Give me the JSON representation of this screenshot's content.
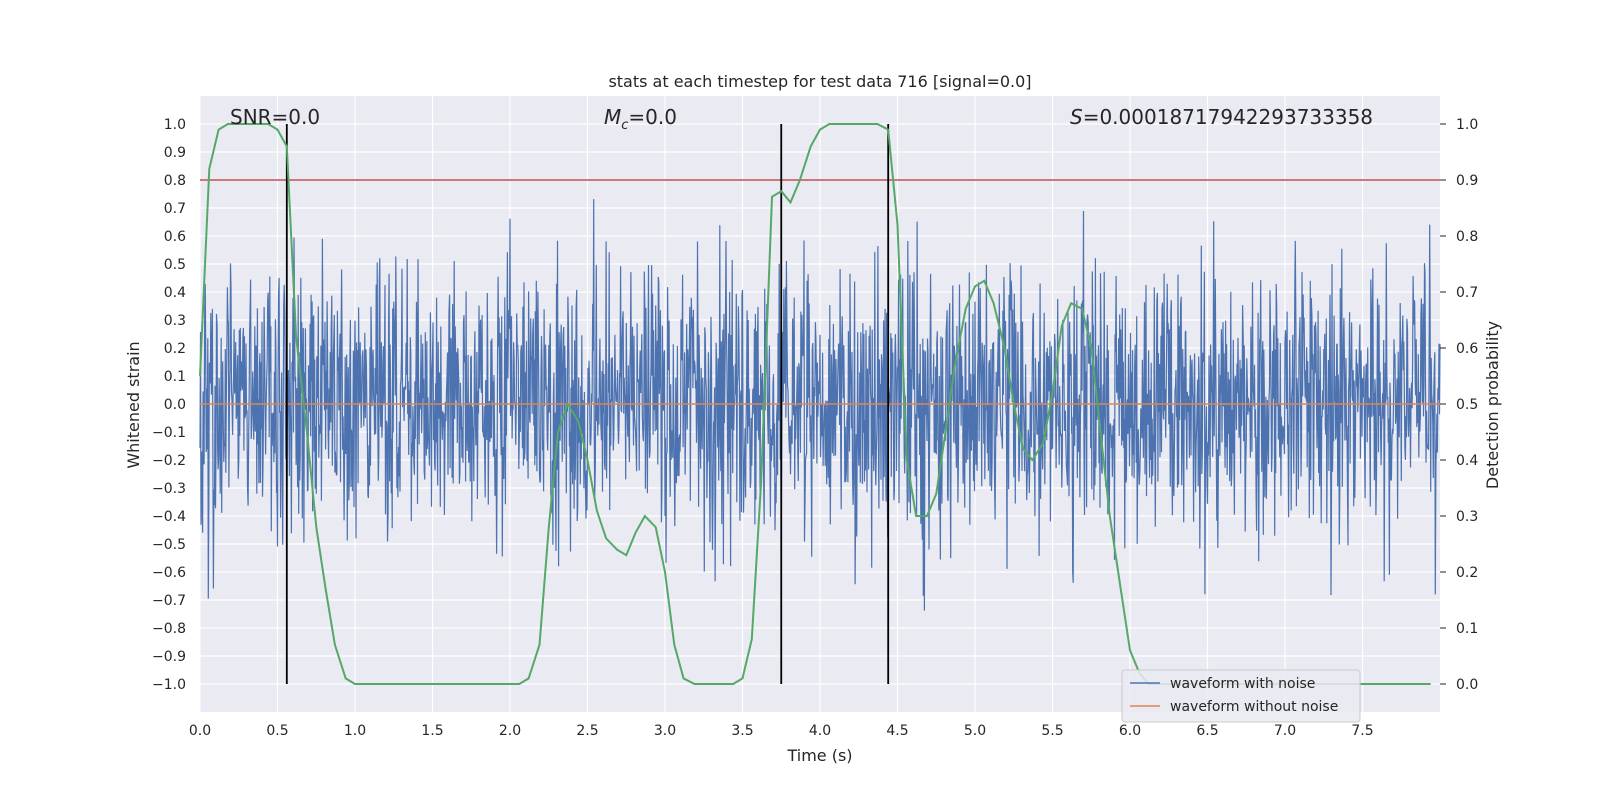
{
  "chart_data": {
    "type": "line",
    "title": "stats at each timestep for test data 716 [signal=0.0]",
    "xlabel": "Time (s)",
    "ylabel_left": "Whitened strain",
    "ylabel_right": "Detection probability",
    "xlim": [
      0.0,
      8.0
    ],
    "ylim_left": [
      -1.1,
      1.1
    ],
    "ylim_right": [
      -0.05,
      1.05
    ],
    "x_ticks": [
      "0.0",
      "0.5",
      "1.0",
      "1.5",
      "2.0",
      "2.5",
      "3.0",
      "3.5",
      "4.0",
      "4.5",
      "5.0",
      "5.5",
      "6.0",
      "6.5",
      "7.0",
      "7.5"
    ],
    "y_ticks_left": [
      "1.0",
      "0.9",
      "0.8",
      "0.7",
      "0.6",
      "0.5",
      "0.4",
      "0.3",
      "0.2",
      "0.1",
      "0.0",
      "−0.1",
      "−0.2",
      "−0.3",
      "−0.4",
      "−0.5",
      "−0.6",
      "−0.7",
      "−0.8",
      "−0.9",
      "−1.0"
    ],
    "y_ticks_right": [
      "1.0",
      "0.9",
      "0.8",
      "0.7",
      "0.6",
      "0.5",
      "0.4",
      "0.3",
      "0.2",
      "0.1",
      "0.0"
    ],
    "annotations": {
      "snr": "SNR=0.0",
      "mc_symbol": "M",
      "mc_sub": "c",
      "mc_value": "=0.0",
      "s_symbol": "S",
      "s_value": "=0.00018717942293733358"
    },
    "threshold_line": {
      "axis": "right",
      "value": 0.9,
      "color": "#c44e52"
    },
    "vertical_lines": [
      0.56,
      3.75,
      4.44
    ],
    "legend": [
      "waveform with noise",
      "waveform without noise"
    ],
    "colors": {
      "noise": "#4c72b0",
      "clean": "#dd8452",
      "probability": "#55a868",
      "threshold": "#c44e52",
      "background": "#eaeaf2"
    },
    "series": [
      {
        "name": "waveform with noise",
        "axis": "left",
        "description_range": [
          -1.0,
          1.0
        ],
        "typical_envelope": 0.45
      },
      {
        "name": "waveform without noise",
        "axis": "left",
        "x": [
          0.0,
          8.0
        ],
        "y": [
          0.0,
          0.0
        ]
      },
      {
        "name": "detection probability",
        "axis": "right",
        "x": [
          0.0,
          0.06,
          0.12,
          0.18,
          0.25,
          0.31,
          0.37,
          0.44,
          0.5,
          0.56,
          0.62,
          0.69,
          0.75,
          0.81,
          0.87,
          0.94,
          1.0,
          1.5,
          2.0,
          2.06,
          2.12,
          2.19,
          2.25,
          2.31,
          2.37,
          2.44,
          2.5,
          2.56,
          2.62,
          2.69,
          2.75,
          2.81,
          2.87,
          2.94,
          3.0,
          3.06,
          3.12,
          3.19,
          3.25,
          3.31,
          3.37,
          3.44,
          3.5,
          3.56,
          3.62,
          3.69,
          3.75,
          3.81,
          3.87,
          3.94,
          4.0,
          4.06,
          4.12,
          4.19,
          4.25,
          4.31,
          4.37,
          4.44,
          4.5,
          4.56,
          4.62,
          4.69,
          4.75,
          4.81,
          4.87,
          4.94,
          5.0,
          5.06,
          5.12,
          5.19,
          5.25,
          5.31,
          5.37,
          5.44,
          5.5,
          5.56,
          5.62,
          5.69,
          5.75,
          5.81,
          5.87,
          5.94,
          6.0,
          6.06,
          6.12,
          6.19,
          6.25,
          6.5,
          7.0,
          7.5,
          7.94
        ],
        "y": [
          0.55,
          0.92,
          0.99,
          1.0,
          1.0,
          1.0,
          1.0,
          1.0,
          0.99,
          0.96,
          0.62,
          0.45,
          0.28,
          0.17,
          0.07,
          0.01,
          0.0,
          0.0,
          0.0,
          0.0,
          0.01,
          0.07,
          0.28,
          0.45,
          0.5,
          0.47,
          0.4,
          0.31,
          0.26,
          0.24,
          0.23,
          0.27,
          0.3,
          0.28,
          0.2,
          0.07,
          0.01,
          0.0,
          0.0,
          0.0,
          0.0,
          0.0,
          0.01,
          0.08,
          0.36,
          0.87,
          0.88,
          0.86,
          0.9,
          0.96,
          0.99,
          1.0,
          1.0,
          1.0,
          1.0,
          1.0,
          1.0,
          0.99,
          0.82,
          0.4,
          0.3,
          0.3,
          0.34,
          0.45,
          0.57,
          0.67,
          0.71,
          0.72,
          0.68,
          0.6,
          0.5,
          0.42,
          0.4,
          0.43,
          0.52,
          0.64,
          0.68,
          0.67,
          0.6,
          0.45,
          0.3,
          0.17,
          0.06,
          0.02,
          0.0,
          0.0,
          0.0,
          0.0,
          0.0,
          0.0,
          0.0
        ]
      }
    ]
  }
}
